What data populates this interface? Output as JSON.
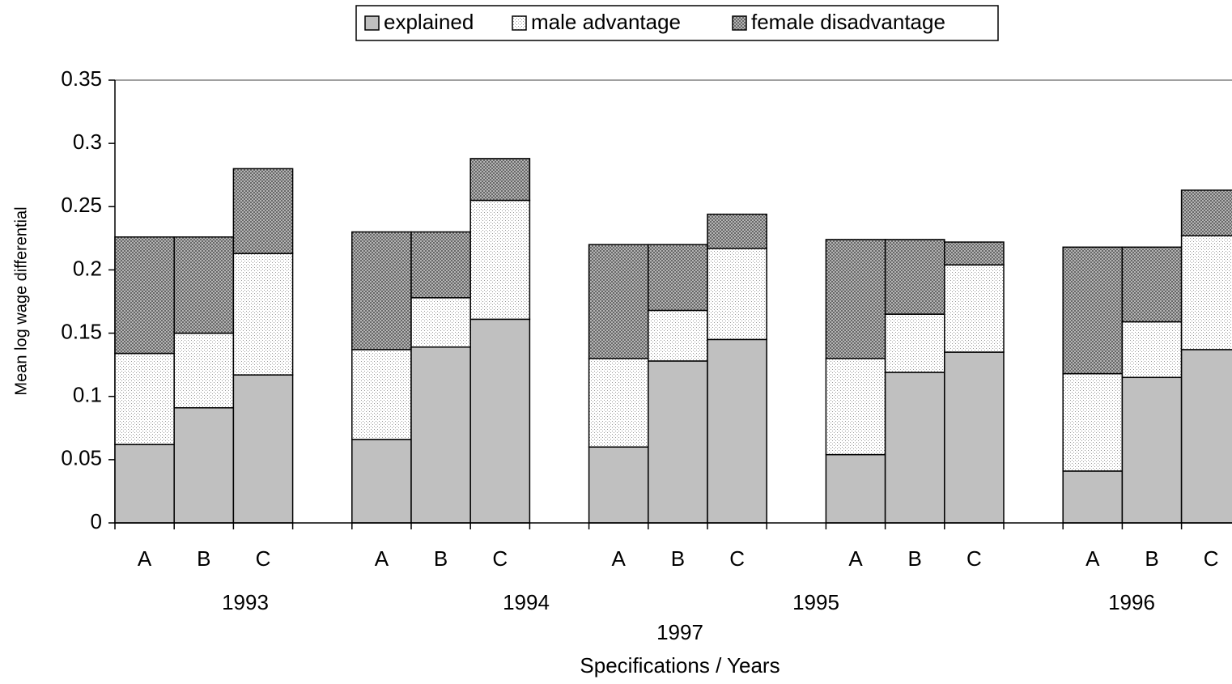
{
  "chart_data": {
    "type": "stacked-bar",
    "y_label": "Mean log wage differential",
    "x_label": "Specifications / Years",
    "categories": [
      "A",
      "B",
      "C",
      "A",
      "B",
      "C",
      "A",
      "B",
      "C",
      "A",
      "B",
      "C",
      "A",
      "B",
      "C"
    ],
    "groups": [
      "1993",
      "1994",
      "1995",
      "1996",
      "1997"
    ],
    "series": [
      {
        "name": "explained",
        "color": "#c0c0c0",
        "pattern": "solid",
        "values": [
          0.062,
          0.091,
          0.117,
          0.066,
          0.139,
          0.161,
          0.06,
          0.128,
          0.145,
          0.054,
          0.119,
          0.135,
          0.041,
          0.115,
          0.137
        ]
      },
      {
        "name": "male advantage",
        "color": "#ffffff",
        "pattern": "dots",
        "values": [
          0.072,
          0.059,
          0.096,
          0.071,
          0.039,
          0.094,
          0.07,
          0.04,
          0.072,
          0.076,
          0.046,
          0.069,
          0.077,
          0.044,
          0.09
        ]
      },
      {
        "name": "female disadvantage",
        "color": "#c8c8c8",
        "pattern": "crosshatch",
        "values": [
          0.092,
          0.076,
          0.067,
          0.093,
          0.052,
          0.033,
          0.09,
          0.052,
          0.027,
          0.094,
          0.059,
          0.018,
          0.1,
          0.059,
          0.036
        ]
      }
    ],
    "ylim": [
      0,
      0.35
    ],
    "yticks": [
      0,
      0.05,
      0.1,
      0.15,
      0.2,
      0.25,
      0.3,
      0.35
    ],
    "legend": "top"
  }
}
